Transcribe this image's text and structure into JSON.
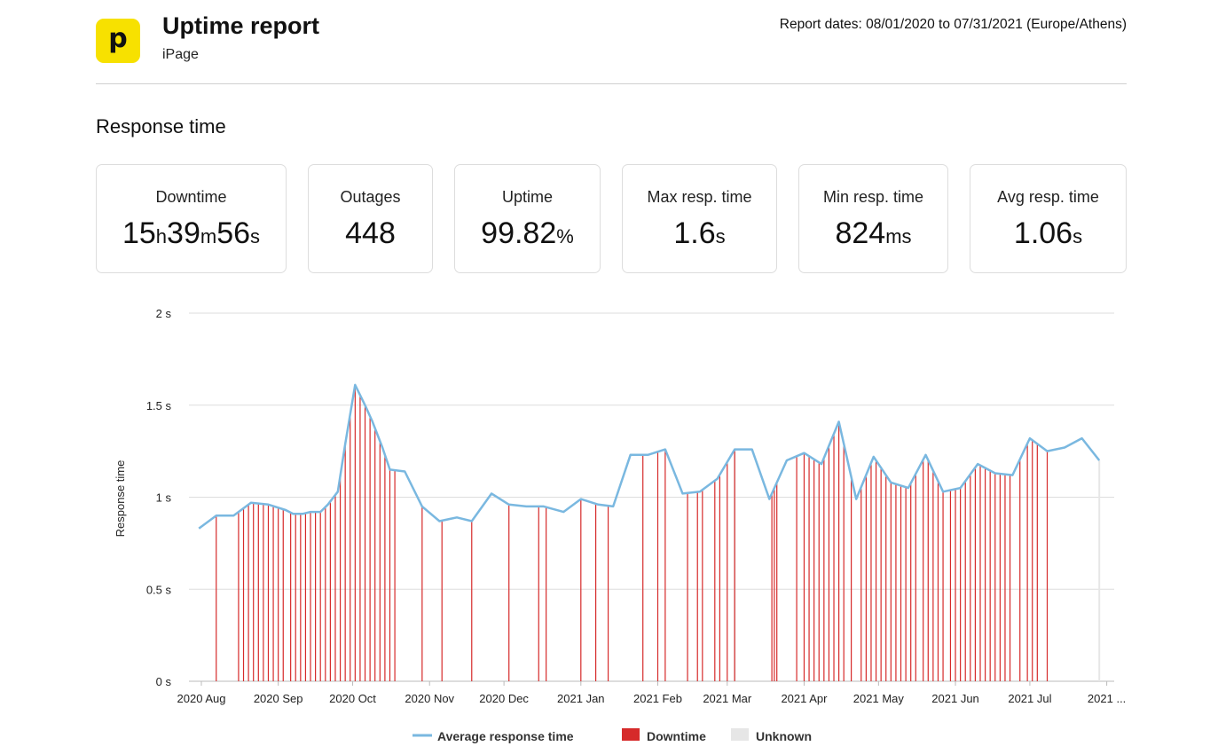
{
  "header": {
    "logo_letter": "p",
    "title": "Uptime report",
    "subtitle": "iPage",
    "report_dates": "Report dates: 08/01/2020 to 07/31/2021 (Europe/Athens)"
  },
  "section_title": "Response time",
  "stats": {
    "downtime": {
      "label": "Downtime",
      "h": "15",
      "h_unit": "h",
      "m": "39",
      "m_unit": "m",
      "s": "56",
      "s_unit": "s"
    },
    "outages": {
      "label": "Outages",
      "value": "448"
    },
    "uptime": {
      "label": "Uptime",
      "value": "99.82",
      "unit": "%"
    },
    "max_resp": {
      "label": "Max resp. time",
      "value": "1.6",
      "unit": "s"
    },
    "min_resp": {
      "label": "Min resp. time",
      "value": "824",
      "unit": "ms"
    },
    "avg_resp": {
      "label": "Avg resp. time",
      "value": "1.06",
      "unit": "s"
    }
  },
  "colors": {
    "line": "#7ab8e0",
    "downtime": "#d62a2a",
    "unknown": "#e6e6e6",
    "grid": "#dddddd"
  },
  "chart_data": {
    "type": "line",
    "title": "",
    "xlabel": "",
    "ylabel": "Response time",
    "ylim": [
      0,
      2
    ],
    "y_ticks": [
      0,
      0.5,
      1,
      1.5,
      2
    ],
    "y_tick_labels": [
      "0 s",
      "0.5 s",
      "1 s",
      "1.5 s",
      "2 s"
    ],
    "x_range": [
      "2020-07-27",
      "2021-08-04"
    ],
    "x_tick_dates": [
      "2020-08-01",
      "2020-09-01",
      "2020-10-01",
      "2020-11-01",
      "2020-12-01",
      "2021-01-01",
      "2021-02-01",
      "2021-03-01",
      "2021-04-01",
      "2021-05-01",
      "2021-06-01",
      "2021-07-01",
      "2021-08-01"
    ],
    "x_tick_labels": [
      "2020 Aug",
      "2020 Sep",
      "2020 Oct",
      "2020 Nov",
      "2020 Dec",
      "2021 Jan",
      "2021 Feb",
      "2021 Mar",
      "2021 Apr",
      "2021 May",
      "2021 Jun",
      "2021 Jul",
      "2021 ..."
    ],
    "grid": true,
    "legend_position": "bottom",
    "legend": [
      {
        "key": "line",
        "label": "Average response time"
      },
      {
        "key": "downtime",
        "label": "Downtime"
      },
      {
        "key": "unknown",
        "label": "Unknown"
      }
    ],
    "series": [
      {
        "name": "Average response time",
        "points": [
          [
            "2020-07-31",
            0.83
          ],
          [
            "2020-08-07",
            0.9
          ],
          [
            "2020-08-14",
            0.9
          ],
          [
            "2020-08-21",
            0.97
          ],
          [
            "2020-08-28",
            0.96
          ],
          [
            "2020-09-04",
            0.93
          ],
          [
            "2020-09-07",
            0.91
          ],
          [
            "2020-09-11",
            0.91
          ],
          [
            "2020-09-14",
            0.92
          ],
          [
            "2020-09-18",
            0.92
          ],
          [
            "2020-09-21",
            0.96
          ],
          [
            "2020-09-25",
            1.03
          ],
          [
            "2020-09-28",
            1.29
          ],
          [
            "2020-10-02",
            1.61
          ],
          [
            "2020-10-06",
            1.5
          ],
          [
            "2020-10-09",
            1.41
          ],
          [
            "2020-10-13",
            1.27
          ],
          [
            "2020-10-16",
            1.15
          ],
          [
            "2020-10-22",
            1.14
          ],
          [
            "2020-10-29",
            0.95
          ],
          [
            "2020-11-05",
            0.87
          ],
          [
            "2020-11-12",
            0.89
          ],
          [
            "2020-11-18",
            0.87
          ],
          [
            "2020-11-26",
            1.02
          ],
          [
            "2020-12-03",
            0.96
          ],
          [
            "2020-12-10",
            0.95
          ],
          [
            "2020-12-17",
            0.95
          ],
          [
            "2020-12-25",
            0.92
          ],
          [
            "2021-01-01",
            0.99
          ],
          [
            "2021-01-08",
            0.96
          ],
          [
            "2021-01-14",
            0.95
          ],
          [
            "2021-01-21",
            1.23
          ],
          [
            "2021-01-28",
            1.23
          ],
          [
            "2021-02-04",
            1.26
          ],
          [
            "2021-02-11",
            1.02
          ],
          [
            "2021-02-18",
            1.03
          ],
          [
            "2021-02-25",
            1.1
          ],
          [
            "2021-03-04",
            1.26
          ],
          [
            "2021-03-11",
            1.26
          ],
          [
            "2021-03-18",
            0.99
          ],
          [
            "2021-03-25",
            1.2
          ],
          [
            "2021-04-01",
            1.24
          ],
          [
            "2021-04-08",
            1.18
          ],
          [
            "2021-04-15",
            1.41
          ],
          [
            "2021-04-22",
            0.99
          ],
          [
            "2021-04-29",
            1.22
          ],
          [
            "2021-05-06",
            1.08
          ],
          [
            "2021-05-13",
            1.05
          ],
          [
            "2021-05-20",
            1.23
          ],
          [
            "2021-05-27",
            1.03
          ],
          [
            "2021-06-03",
            1.05
          ],
          [
            "2021-06-10",
            1.18
          ],
          [
            "2021-06-17",
            1.13
          ],
          [
            "2021-06-24",
            1.12
          ],
          [
            "2021-07-01",
            1.32
          ],
          [
            "2021-07-08",
            1.25
          ],
          [
            "2021-07-15",
            1.27
          ],
          [
            "2021-07-22",
            1.32
          ],
          [
            "2021-07-29",
            1.2
          ]
        ]
      }
    ],
    "downtime_dates": [
      "2020-08-07",
      "2020-08-16",
      "2020-08-18",
      "2020-08-20",
      "2020-08-22",
      "2020-08-24",
      "2020-08-26",
      "2020-08-28",
      "2020-08-30",
      "2020-09-01",
      "2020-09-03",
      "2020-09-06",
      "2020-09-08",
      "2020-09-10",
      "2020-09-12",
      "2020-09-14",
      "2020-09-16",
      "2020-09-18",
      "2020-09-20",
      "2020-09-22",
      "2020-09-24",
      "2020-09-26",
      "2020-09-28",
      "2020-09-30",
      "2020-10-02",
      "2020-10-04",
      "2020-10-06",
      "2020-10-08",
      "2020-10-10",
      "2020-10-12",
      "2020-10-14",
      "2020-10-16",
      "2020-10-18",
      "2020-10-29",
      "2020-11-06",
      "2020-11-18",
      "2020-12-03",
      "2020-12-15",
      "2020-12-18",
      "2021-01-01",
      "2021-01-07",
      "2021-01-12",
      "2021-01-26",
      "2021-02-01",
      "2021-02-04",
      "2021-02-13",
      "2021-02-17",
      "2021-02-19",
      "2021-02-24",
      "2021-02-26",
      "2021-03-01",
      "2021-03-04",
      "2021-03-19",
      "2021-03-20",
      "2021-03-21",
      "2021-03-29",
      "2021-04-01",
      "2021-04-03",
      "2021-04-05",
      "2021-04-07",
      "2021-04-09",
      "2021-04-11",
      "2021-04-13",
      "2021-04-15",
      "2021-04-17",
      "2021-04-20",
      "2021-04-24",
      "2021-04-26",
      "2021-04-28",
      "2021-04-30",
      "2021-05-02",
      "2021-05-04",
      "2021-05-06",
      "2021-05-08",
      "2021-05-10",
      "2021-05-12",
      "2021-05-14",
      "2021-05-16",
      "2021-05-19",
      "2021-05-21",
      "2021-05-23",
      "2021-05-25",
      "2021-05-27",
      "2021-05-30",
      "2021-06-01",
      "2021-06-03",
      "2021-06-05",
      "2021-06-07",
      "2021-06-09",
      "2021-06-11",
      "2021-06-13",
      "2021-06-15",
      "2021-06-17",
      "2021-06-19",
      "2021-06-21",
      "2021-06-23",
      "2021-06-27",
      "2021-06-30",
      "2021-07-02",
      "2021-07-04",
      "2021-07-08"
    ],
    "unknown_dates": [
      "2021-03-04",
      "2021-07-29"
    ]
  }
}
